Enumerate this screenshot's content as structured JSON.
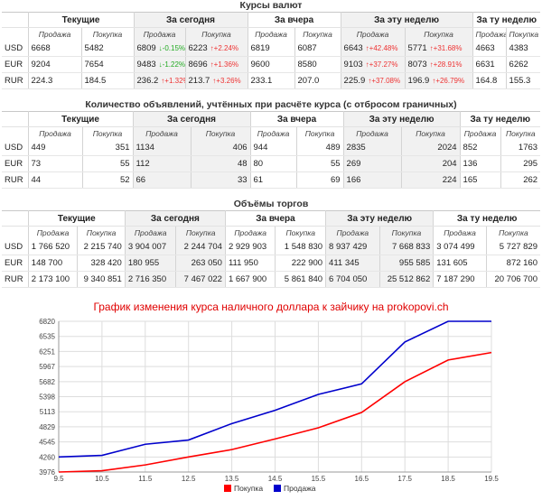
{
  "rates": {
    "title": "Курсы валют",
    "groups": [
      "Текущие",
      "За сегодня",
      "За вчера",
      "За эту неделю",
      "За ту неделю"
    ],
    "sub": [
      "Продажа",
      "Покупка"
    ],
    "rows": [
      {
        "cur": "USD",
        "cells": [
          [
            "6668",
            ""
          ],
          [
            "5482",
            ""
          ],
          [
            "6809",
            "↓-0.15%"
          ],
          [
            "6223",
            "↑+2.24%"
          ],
          [
            "6819",
            ""
          ],
          [
            "6087",
            ""
          ],
          [
            "6643",
            "↑+42.48%"
          ],
          [
            "5771",
            "↑+31.68%"
          ],
          [
            "4663",
            ""
          ],
          [
            "4383",
            ""
          ]
        ]
      },
      {
        "cur": "EUR",
        "cells": [
          [
            "9204",
            ""
          ],
          [
            "7654",
            ""
          ],
          [
            "9483",
            "↓-1.22%"
          ],
          [
            "8696",
            "↑+1.36%"
          ],
          [
            "9600",
            ""
          ],
          [
            "8580",
            ""
          ],
          [
            "9103",
            "↑+37.27%"
          ],
          [
            "8073",
            "↑+28.91%"
          ],
          [
            "6631",
            ""
          ],
          [
            "6262",
            ""
          ]
        ]
      },
      {
        "cur": "RUR",
        "cells": [
          [
            "224.3",
            ""
          ],
          [
            "184.5",
            ""
          ],
          [
            "236.2",
            "↑+1.32%"
          ],
          [
            "213.7",
            "↑+3.26%"
          ],
          [
            "233.1",
            ""
          ],
          [
            "207.0",
            ""
          ],
          [
            "225.9",
            "↑+37.08%"
          ],
          [
            "196.9",
            "↑+26.79%"
          ],
          [
            "164.8",
            ""
          ],
          [
            "155.3",
            ""
          ]
        ]
      }
    ]
  },
  "ads": {
    "title": "Количество объявлений, учтённых при расчёте курса (с отбросом граничных)",
    "groups": [
      "Текущие",
      "За сегодня",
      "За вчера",
      "За эту неделю",
      "За ту неделю"
    ],
    "sub": [
      "Продажа",
      "Покупка"
    ],
    "rows": [
      {
        "cur": "USD",
        "cells": [
          "449",
          "351",
          "1134",
          "406",
          "944",
          "489",
          "2835",
          "2024",
          "852",
          "1763"
        ]
      },
      {
        "cur": "EUR",
        "cells": [
          "73",
          "55",
          "112",
          "48",
          "80",
          "55",
          "269",
          "204",
          "136",
          "295"
        ]
      },
      {
        "cur": "RUR",
        "cells": [
          "44",
          "52",
          "66",
          "33",
          "61",
          "69",
          "166",
          "224",
          "165",
          "262"
        ]
      }
    ]
  },
  "volume": {
    "title": "Объёмы торгов",
    "groups": [
      "Текущие",
      "За сегодня",
      "За вчера",
      "За эту неделю",
      "За ту неделю"
    ],
    "sub": [
      "Продажа",
      "Покупка"
    ],
    "rows": [
      {
        "cur": "USD",
        "cells": [
          "1 766 520",
          "2 215 740",
          "3 904 007",
          "2 244 704",
          "2 929 903",
          "1 548 830",
          "8 937 429",
          "7 668 833",
          "3 074 499",
          "5 727 829"
        ]
      },
      {
        "cur": "EUR",
        "cells": [
          "148 700",
          "328 420",
          "180 955",
          "263 050",
          "111 950",
          "222 900",
          "411 345",
          "955 585",
          "131 605",
          "872 160"
        ]
      },
      {
        "cur": "RUR",
        "cells": [
          "2 173 100",
          "9 340 851",
          "2 716 350",
          "7 467 022",
          "1 667 900",
          "5 861 840",
          "6 704 050",
          "25 512 862",
          "7 187 290",
          "20 706 700"
        ]
      }
    ]
  },
  "colors": {
    "buy": "#ff0000",
    "sell": "#0000cc",
    "up": "#e33333",
    "down": "#22aa22"
  },
  "chart_data": {
    "type": "line",
    "title": "График изменения курса наличного доллара к зайчику на prokopovi.ch",
    "x": [
      9.5,
      10.5,
      11.5,
      12.5,
      13.5,
      14.5,
      15.5,
      16.5,
      17.5,
      18.5,
      19.5
    ],
    "xticks": [
      "9.5",
      "10.5",
      "11.5",
      "12.5",
      "13.5",
      "14.5",
      "15.5",
      "16.5",
      "17.5",
      "18.5",
      "19.5"
    ],
    "yticks": [
      "3976",
      "4260",
      "4545",
      "4829",
      "5113",
      "5398",
      "5682",
      "5967",
      "6251",
      "6535",
      "6820"
    ],
    "ylim": [
      3976,
      6820
    ],
    "xlim": [
      9.5,
      19.5
    ],
    "grid": true,
    "legend": "bottom",
    "series": [
      {
        "name": "Покупка",
        "color": "#ff0000",
        "values": [
          3976,
          4000,
          4110,
          4260,
          4400,
          4600,
          4810,
          5100,
          5680,
          6090,
          6230
        ]
      },
      {
        "name": "Продажа",
        "color": "#0000cc",
        "values": [
          4260,
          4290,
          4500,
          4580,
          4890,
          5140,
          5440,
          5640,
          6430,
          6820,
          6820
        ]
      }
    ]
  }
}
